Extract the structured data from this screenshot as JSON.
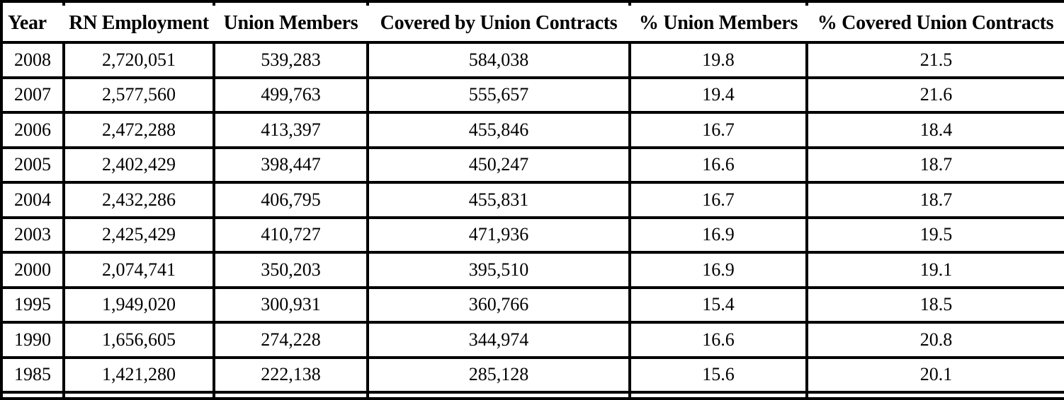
{
  "table": {
    "columns": [
      "Year",
      "RN Employment",
      "Union Members",
      "Covered by Union Contracts",
      "% Union Members",
      "% Covered Union Contracts"
    ],
    "rows": [
      [
        "2008",
        "2,720,051",
        "539,283",
        "584,038",
        "19.8",
        "21.5"
      ],
      [
        "2007",
        "2,577,560",
        "499,763",
        "555,657",
        "19.4",
        "21.6"
      ],
      [
        "2006",
        "2,472,288",
        "413,397",
        "455,846",
        "16.7",
        "18.4"
      ],
      [
        "2005",
        "2,402,429",
        "398,447",
        "450,247",
        "16.6",
        "18.7"
      ],
      [
        "2004",
        "2,432,286",
        "406,795",
        "455,831",
        "16.7",
        "18.7"
      ],
      [
        "2003",
        "2,425,429",
        "410,727",
        "471,936",
        "16.9",
        "19.5"
      ],
      [
        "2000",
        "2,074,741",
        "350,203",
        "395,510",
        "16.9",
        "19.1"
      ],
      [
        "1995",
        "1,949,020",
        "300,931",
        "360,766",
        "15.4",
        "18.5"
      ],
      [
        "1990",
        "1,656,605",
        "274,228",
        "344,974",
        "16.6",
        "20.8"
      ],
      [
        "1985",
        "1,421,280",
        "222,138",
        "285,128",
        "15.6",
        "20.1"
      ]
    ]
  },
  "colors": {
    "border": "#000000",
    "background": "#ffffff",
    "text": "#000000"
  },
  "chart_data": {
    "type": "table",
    "columns": [
      "Year",
      "RN Employment",
      "Union Members",
      "Covered by Union Contracts",
      "% Union Members",
      "% Covered Union Contracts"
    ],
    "rows": [
      [
        2008,
        2720051,
        539283,
        584038,
        19.8,
        21.5
      ],
      [
        2007,
        2577560,
        499763,
        555657,
        19.4,
        21.6
      ],
      [
        2006,
        2472288,
        413397,
        455846,
        16.7,
        18.4
      ],
      [
        2005,
        2402429,
        398447,
        450247,
        16.6,
        18.7
      ],
      [
        2004,
        2432286,
        406795,
        455831,
        16.7,
        18.7
      ],
      [
        2003,
        2425429,
        410727,
        471936,
        16.9,
        19.5
      ],
      [
        2000,
        2074741,
        350203,
        395510,
        16.9,
        19.1
      ],
      [
        1995,
        1949020,
        300931,
        360766,
        15.4,
        18.5
      ],
      [
        1990,
        1656605,
        274228,
        344974,
        16.6,
        20.8
      ],
      [
        1985,
        1421280,
        222138,
        285128,
        15.6,
        20.1
      ]
    ]
  }
}
